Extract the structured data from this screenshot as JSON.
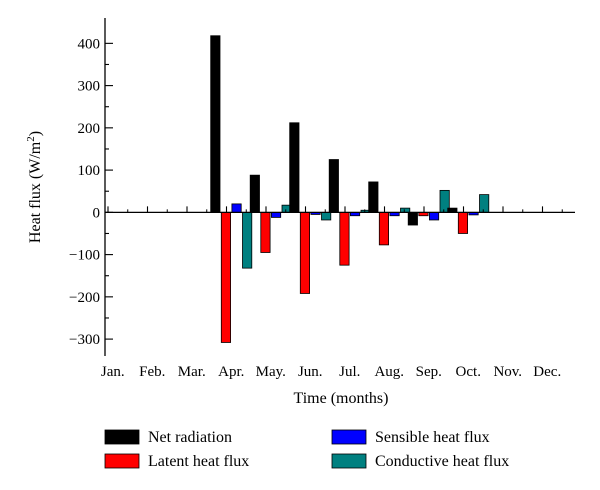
{
  "chart_data": {
    "type": "bar",
    "xlabel": "Time (months)",
    "ylabel_main": "Heat flux (W/m",
    "ylabel_sup": "2",
    "ylabel_tail": ")",
    "ylim": [
      -340,
      460
    ],
    "yticks": [
      -300,
      -200,
      -100,
      0,
      100,
      200,
      300,
      400
    ],
    "ytick_labels": [
      "−300",
      "−200",
      "−100",
      "0",
      "100",
      "200",
      "300",
      "400"
    ],
    "categories": [
      "Jan.",
      "Feb.",
      "Mar.",
      "Apr.",
      "May.",
      "Jun.",
      "Jul.",
      "Aug.",
      "Sep.",
      "Oct.",
      "Nov.",
      "Dec."
    ],
    "grid": false,
    "legend_position": "bottom",
    "series": [
      {
        "name": "Net radiation",
        "color": "#000000",
        "values": [
          null,
          null,
          null,
          418,
          88,
          212,
          125,
          72,
          -30,
          10,
          null,
          null
        ]
      },
      {
        "name": "Latent heat flux",
        "color": "#ff0000",
        "values": [
          null,
          null,
          null,
          -308,
          -95,
          -192,
          -125,
          -77,
          -8,
          -50,
          null,
          null
        ]
      },
      {
        "name": "Sensible heat flux",
        "color": "#0000ff",
        "values": [
          null,
          null,
          null,
          20,
          -12,
          -5,
          -8,
          -8,
          -18,
          -6,
          null,
          null
        ]
      },
      {
        "name": "Conductive heat flux",
        "color": "#008080",
        "values": [
          null,
          null,
          null,
          -132,
          17,
          -18,
          5,
          10,
          52,
          42,
          null,
          null
        ]
      }
    ]
  }
}
